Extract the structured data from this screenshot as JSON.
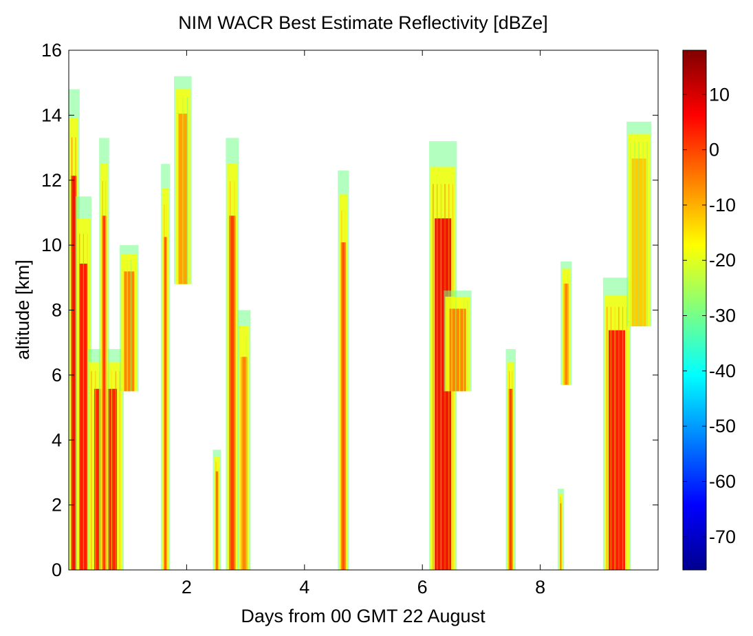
{
  "chart_data": {
    "type": "heatmap",
    "title": "NIM WACR Best Estimate Reflectivity [dBZe]",
    "xlabel": "Days from 00 GMT 22 August",
    "ylabel": "altitude [km]",
    "xlim": [
      0,
      10
    ],
    "ylim": [
      0,
      16
    ],
    "x_ticks": [
      2,
      4,
      6,
      8
    ],
    "x_tick_labels": [
      "2",
      "4",
      "6",
      "8"
    ],
    "y_ticks": [
      0,
      2,
      4,
      6,
      8,
      10,
      12,
      14,
      16
    ],
    "y_tick_labels": [
      "0",
      "2",
      "4",
      "6",
      "8",
      "10",
      "12",
      "14",
      "16"
    ],
    "colorbar": {
      "label": "dBZe",
      "range": [
        -76,
        18
      ],
      "ticks": [
        10,
        0,
        -10,
        -20,
        -30,
        -40,
        -50,
        -60,
        -70
      ],
      "tick_labels": [
        "10",
        "0",
        "-10",
        "-20",
        "-30",
        "-40",
        "-50",
        "-60",
        "-70"
      ],
      "colormap": "jet"
    },
    "echo_columns": [
      {
        "x0": 0.02,
        "x1": 0.15,
        "bottom": 0,
        "top": 14.8,
        "peak_dBZ": 8
      },
      {
        "x0": 0.15,
        "x1": 0.35,
        "bottom": 0,
        "top": 11.5,
        "peak_dBZ": 6
      },
      {
        "x0": 0.35,
        "x1": 0.9,
        "bottom": 0,
        "top": 6.8,
        "peak_dBZ": 5
      },
      {
        "x0": 0.55,
        "x1": 0.65,
        "bottom": 0,
        "top": 13.3,
        "peak_dBZ": 2
      },
      {
        "x0": 0.9,
        "x1": 1.15,
        "bottom": 5.5,
        "top": 10,
        "peak_dBZ": -5
      },
      {
        "x0": 1.6,
        "x1": 1.68,
        "bottom": 0,
        "top": 12.5,
        "peak_dBZ": 0
      },
      {
        "x0": 1.82,
        "x1": 2.05,
        "bottom": 8.8,
        "top": 15.2,
        "peak_dBZ": -8
      },
      {
        "x0": 2.48,
        "x1": 2.55,
        "bottom": 0,
        "top": 3.7,
        "peak_dBZ": 0
      },
      {
        "x0": 2.7,
        "x1": 2.85,
        "bottom": 0,
        "top": 13.3,
        "peak_dBZ": 2
      },
      {
        "x0": 2.9,
        "x1": 3.05,
        "bottom": 0,
        "top": 8,
        "peak_dBZ": -5
      },
      {
        "x0": 4.6,
        "x1": 4.72,
        "bottom": 0,
        "top": 12.3,
        "peak_dBZ": 0
      },
      {
        "x0": 6.15,
        "x1": 6.55,
        "bottom": 0,
        "top": 13.2,
        "peak_dBZ": 8
      },
      {
        "x0": 6.4,
        "x1": 6.8,
        "bottom": 5.5,
        "top": 8.6,
        "peak_dBZ": -5
      },
      {
        "x0": 7.45,
        "x1": 7.55,
        "bottom": 0,
        "top": 6.8,
        "peak_dBZ": 2
      },
      {
        "x0": 8.33,
        "x1": 8.37,
        "bottom": 0,
        "top": 2.5,
        "peak_dBZ": 0
      },
      {
        "x0": 8.38,
        "x1": 8.5,
        "bottom": 5.7,
        "top": 9.5,
        "peak_dBZ": -5
      },
      {
        "x0": 9.1,
        "x1": 9.5,
        "bottom": 0,
        "top": 9,
        "peak_dBZ": 6
      },
      {
        "x0": 9.5,
        "x1": 9.85,
        "bottom": 7.5,
        "top": 13.8,
        "peak_dBZ": -12
      }
    ]
  }
}
